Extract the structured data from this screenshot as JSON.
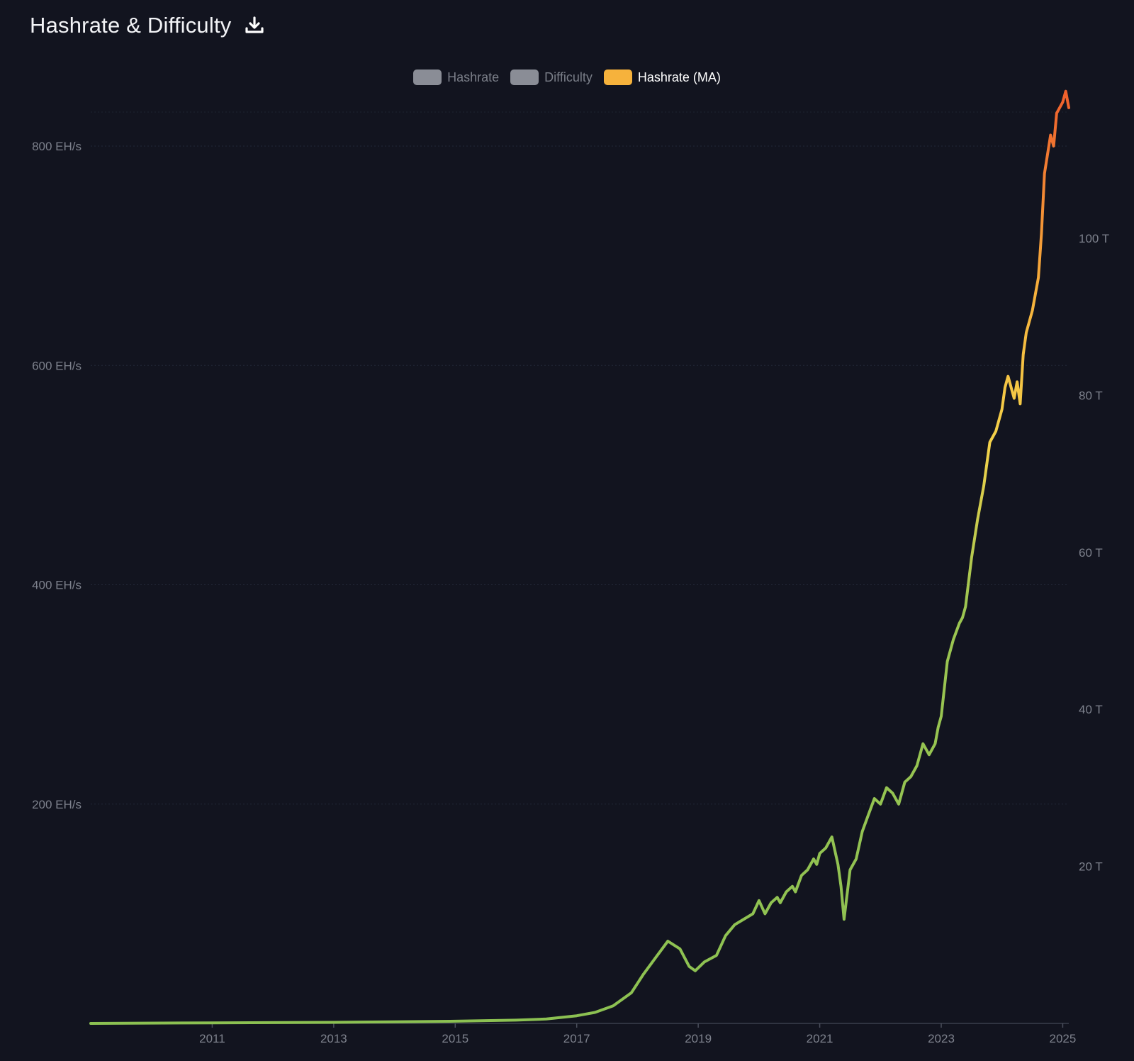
{
  "header": {
    "title": "Hashrate & Difficulty",
    "download_icon": "download-icon"
  },
  "legend": [
    {
      "label": "Hashrate",
      "active": false,
      "color": "#8a8d96"
    },
    {
      "label": "Difficulty",
      "active": false,
      "color": "#8a8d96"
    },
    {
      "label": "Hashrate (MA)",
      "active": true,
      "color": "#f6b23c"
    }
  ],
  "colors": {
    "background": "#12141f",
    "grid": "#262a36",
    "gradient_low": "#8cc152",
    "gradient_mid": "#f7c744",
    "gradient_high": "#ef6f2e"
  },
  "chart_data": {
    "type": "line",
    "title": "Hashrate & Difficulty",
    "xlabel": "",
    "ylabel": "",
    "xlim": [
      2009.0,
      2025.1
    ],
    "x_ticks": [
      "2011",
      "2013",
      "2015",
      "2017",
      "2019",
      "2021",
      "2023",
      "2025"
    ],
    "x_tick_values": [
      2011,
      2013,
      2015,
      2017,
      2019,
      2021,
      2023,
      2025
    ],
    "y_left": {
      "ticks": [
        "200 EH/s",
        "400 EH/s",
        "600 EH/s",
        "800 EH/s"
      ],
      "tick_values": [
        200,
        400,
        600,
        800
      ],
      "range": [
        0,
        800
      ]
    },
    "y_right": {
      "ticks": [
        "20 T",
        "40 T",
        "60 T",
        "80 T",
        "100 T"
      ],
      "tick_values": [
        20,
        40,
        60,
        80,
        100
      ]
    },
    "grid": true,
    "legend_position": "top-center",
    "series": [
      {
        "name": "Hashrate (MA)",
        "x": [
          2009.0,
          2011.0,
          2013.0,
          2014.0,
          2015.0,
          2016.0,
          2016.5,
          2017.0,
          2017.3,
          2017.6,
          2017.9,
          2018.1,
          2018.3,
          2018.5,
          2018.7,
          2018.85,
          2018.95,
          2019.1,
          2019.3,
          2019.45,
          2019.6,
          2019.75,
          2019.9,
          2020.0,
          2020.1,
          2020.2,
          2020.3,
          2020.35,
          2020.45,
          2020.55,
          2020.6,
          2020.7,
          2020.8,
          2020.9,
          2020.95,
          2021.0,
          2021.1,
          2021.2,
          2021.3,
          2021.35,
          2021.4,
          2021.5,
          2021.6,
          2021.7,
          2021.8,
          2021.9,
          2022.0,
          2022.1,
          2022.2,
          2022.3,
          2022.4,
          2022.5,
          2022.6,
          2022.7,
          2022.8,
          2022.9,
          2022.95,
          2023.0,
          2023.1,
          2023.2,
          2023.3,
          2023.35,
          2023.4,
          2023.5,
          2023.6,
          2023.7,
          2023.8,
          2023.9,
          2024.0,
          2024.05,
          2024.1,
          2024.2,
          2024.25,
          2024.3,
          2024.35,
          2024.4,
          2024.45,
          2024.5,
          2024.6,
          2024.65,
          2024.7,
          2024.8,
          2024.85,
          2024.9,
          2025.0,
          2025.05,
          2025.1
        ],
        "values": [
          0,
          0.5,
          1,
          1.5,
          2,
          3,
          4,
          7,
          10,
          16,
          28,
          45,
          60,
          75,
          68,
          52,
          48,
          56,
          62,
          80,
          90,
          95,
          100,
          112,
          100,
          110,
          115,
          110,
          120,
          125,
          120,
          135,
          140,
          150,
          145,
          155,
          160,
          170,
          145,
          125,
          95,
          140,
          150,
          175,
          190,
          205,
          200,
          215,
          210,
          200,
          220,
          225,
          235,
          255,
          245,
          255,
          270,
          280,
          330,
          350,
          365,
          370,
          380,
          425,
          460,
          490,
          530,
          540,
          560,
          580,
          590,
          570,
          585,
          565,
          610,
          630,
          640,
          650,
          680,
          720,
          775,
          810,
          800,
          830,
          840,
          850,
          835
        ]
      }
    ]
  }
}
